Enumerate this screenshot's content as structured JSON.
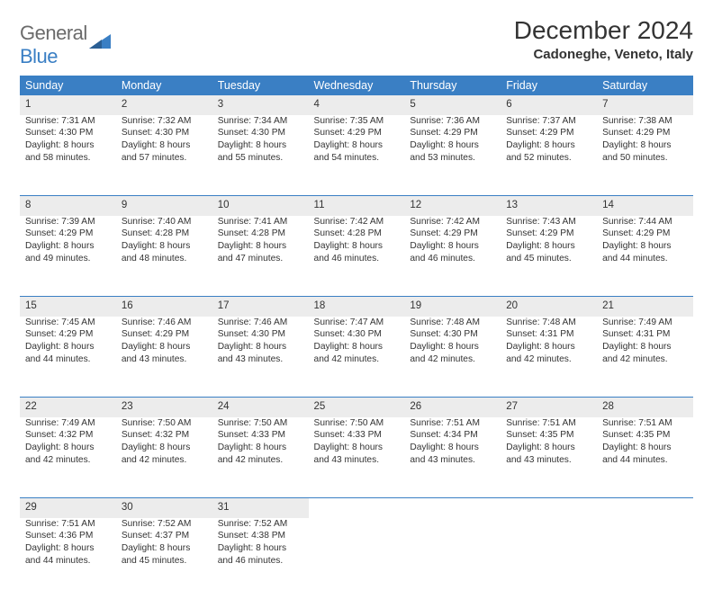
{
  "logo": {
    "word1": "General",
    "word2": "Blue"
  },
  "title": "December 2024",
  "location": "Cadoneghe, Veneto, Italy",
  "colors": {
    "header_bg": "#3a7fc4",
    "header_text": "#ffffff",
    "day_bg": "#ececec",
    "text": "#333333",
    "logo_gray": "#6b6b6b",
    "logo_blue": "#3a7fc4",
    "page_bg": "#ffffff"
  },
  "days_of_week": [
    "Sunday",
    "Monday",
    "Tuesday",
    "Wednesday",
    "Thursday",
    "Friday",
    "Saturday"
  ],
  "weeks": [
    [
      {
        "n": "1",
        "sunrise": "Sunrise: 7:31 AM",
        "sunset": "Sunset: 4:30 PM",
        "dl1": "Daylight: 8 hours",
        "dl2": "and 58 minutes."
      },
      {
        "n": "2",
        "sunrise": "Sunrise: 7:32 AM",
        "sunset": "Sunset: 4:30 PM",
        "dl1": "Daylight: 8 hours",
        "dl2": "and 57 minutes."
      },
      {
        "n": "3",
        "sunrise": "Sunrise: 7:34 AM",
        "sunset": "Sunset: 4:30 PM",
        "dl1": "Daylight: 8 hours",
        "dl2": "and 55 minutes."
      },
      {
        "n": "4",
        "sunrise": "Sunrise: 7:35 AM",
        "sunset": "Sunset: 4:29 PM",
        "dl1": "Daylight: 8 hours",
        "dl2": "and 54 minutes."
      },
      {
        "n": "5",
        "sunrise": "Sunrise: 7:36 AM",
        "sunset": "Sunset: 4:29 PM",
        "dl1": "Daylight: 8 hours",
        "dl2": "and 53 minutes."
      },
      {
        "n": "6",
        "sunrise": "Sunrise: 7:37 AM",
        "sunset": "Sunset: 4:29 PM",
        "dl1": "Daylight: 8 hours",
        "dl2": "and 52 minutes."
      },
      {
        "n": "7",
        "sunrise": "Sunrise: 7:38 AM",
        "sunset": "Sunset: 4:29 PM",
        "dl1": "Daylight: 8 hours",
        "dl2": "and 50 minutes."
      }
    ],
    [
      {
        "n": "8",
        "sunrise": "Sunrise: 7:39 AM",
        "sunset": "Sunset: 4:29 PM",
        "dl1": "Daylight: 8 hours",
        "dl2": "and 49 minutes."
      },
      {
        "n": "9",
        "sunrise": "Sunrise: 7:40 AM",
        "sunset": "Sunset: 4:28 PM",
        "dl1": "Daylight: 8 hours",
        "dl2": "and 48 minutes."
      },
      {
        "n": "10",
        "sunrise": "Sunrise: 7:41 AM",
        "sunset": "Sunset: 4:28 PM",
        "dl1": "Daylight: 8 hours",
        "dl2": "and 47 minutes."
      },
      {
        "n": "11",
        "sunrise": "Sunrise: 7:42 AM",
        "sunset": "Sunset: 4:28 PM",
        "dl1": "Daylight: 8 hours",
        "dl2": "and 46 minutes."
      },
      {
        "n": "12",
        "sunrise": "Sunrise: 7:42 AM",
        "sunset": "Sunset: 4:29 PM",
        "dl1": "Daylight: 8 hours",
        "dl2": "and 46 minutes."
      },
      {
        "n": "13",
        "sunrise": "Sunrise: 7:43 AM",
        "sunset": "Sunset: 4:29 PM",
        "dl1": "Daylight: 8 hours",
        "dl2": "and 45 minutes."
      },
      {
        "n": "14",
        "sunrise": "Sunrise: 7:44 AM",
        "sunset": "Sunset: 4:29 PM",
        "dl1": "Daylight: 8 hours",
        "dl2": "and 44 minutes."
      }
    ],
    [
      {
        "n": "15",
        "sunrise": "Sunrise: 7:45 AM",
        "sunset": "Sunset: 4:29 PM",
        "dl1": "Daylight: 8 hours",
        "dl2": "and 44 minutes."
      },
      {
        "n": "16",
        "sunrise": "Sunrise: 7:46 AM",
        "sunset": "Sunset: 4:29 PM",
        "dl1": "Daylight: 8 hours",
        "dl2": "and 43 minutes."
      },
      {
        "n": "17",
        "sunrise": "Sunrise: 7:46 AM",
        "sunset": "Sunset: 4:30 PM",
        "dl1": "Daylight: 8 hours",
        "dl2": "and 43 minutes."
      },
      {
        "n": "18",
        "sunrise": "Sunrise: 7:47 AM",
        "sunset": "Sunset: 4:30 PM",
        "dl1": "Daylight: 8 hours",
        "dl2": "and 42 minutes."
      },
      {
        "n": "19",
        "sunrise": "Sunrise: 7:48 AM",
        "sunset": "Sunset: 4:30 PM",
        "dl1": "Daylight: 8 hours",
        "dl2": "and 42 minutes."
      },
      {
        "n": "20",
        "sunrise": "Sunrise: 7:48 AM",
        "sunset": "Sunset: 4:31 PM",
        "dl1": "Daylight: 8 hours",
        "dl2": "and 42 minutes."
      },
      {
        "n": "21",
        "sunrise": "Sunrise: 7:49 AM",
        "sunset": "Sunset: 4:31 PM",
        "dl1": "Daylight: 8 hours",
        "dl2": "and 42 minutes."
      }
    ],
    [
      {
        "n": "22",
        "sunrise": "Sunrise: 7:49 AM",
        "sunset": "Sunset: 4:32 PM",
        "dl1": "Daylight: 8 hours",
        "dl2": "and 42 minutes."
      },
      {
        "n": "23",
        "sunrise": "Sunrise: 7:50 AM",
        "sunset": "Sunset: 4:32 PM",
        "dl1": "Daylight: 8 hours",
        "dl2": "and 42 minutes."
      },
      {
        "n": "24",
        "sunrise": "Sunrise: 7:50 AM",
        "sunset": "Sunset: 4:33 PM",
        "dl1": "Daylight: 8 hours",
        "dl2": "and 42 minutes."
      },
      {
        "n": "25",
        "sunrise": "Sunrise: 7:50 AM",
        "sunset": "Sunset: 4:33 PM",
        "dl1": "Daylight: 8 hours",
        "dl2": "and 43 minutes."
      },
      {
        "n": "26",
        "sunrise": "Sunrise: 7:51 AM",
        "sunset": "Sunset: 4:34 PM",
        "dl1": "Daylight: 8 hours",
        "dl2": "and 43 minutes."
      },
      {
        "n": "27",
        "sunrise": "Sunrise: 7:51 AM",
        "sunset": "Sunset: 4:35 PM",
        "dl1": "Daylight: 8 hours",
        "dl2": "and 43 minutes."
      },
      {
        "n": "28",
        "sunrise": "Sunrise: 7:51 AM",
        "sunset": "Sunset: 4:35 PM",
        "dl1": "Daylight: 8 hours",
        "dl2": "and 44 minutes."
      }
    ],
    [
      {
        "n": "29",
        "sunrise": "Sunrise: 7:51 AM",
        "sunset": "Sunset: 4:36 PM",
        "dl1": "Daylight: 8 hours",
        "dl2": "and 44 minutes."
      },
      {
        "n": "30",
        "sunrise": "Sunrise: 7:52 AM",
        "sunset": "Sunset: 4:37 PM",
        "dl1": "Daylight: 8 hours",
        "dl2": "and 45 minutes."
      },
      {
        "n": "31",
        "sunrise": "Sunrise: 7:52 AM",
        "sunset": "Sunset: 4:38 PM",
        "dl1": "Daylight: 8 hours",
        "dl2": "and 46 minutes."
      },
      null,
      null,
      null,
      null
    ]
  ]
}
